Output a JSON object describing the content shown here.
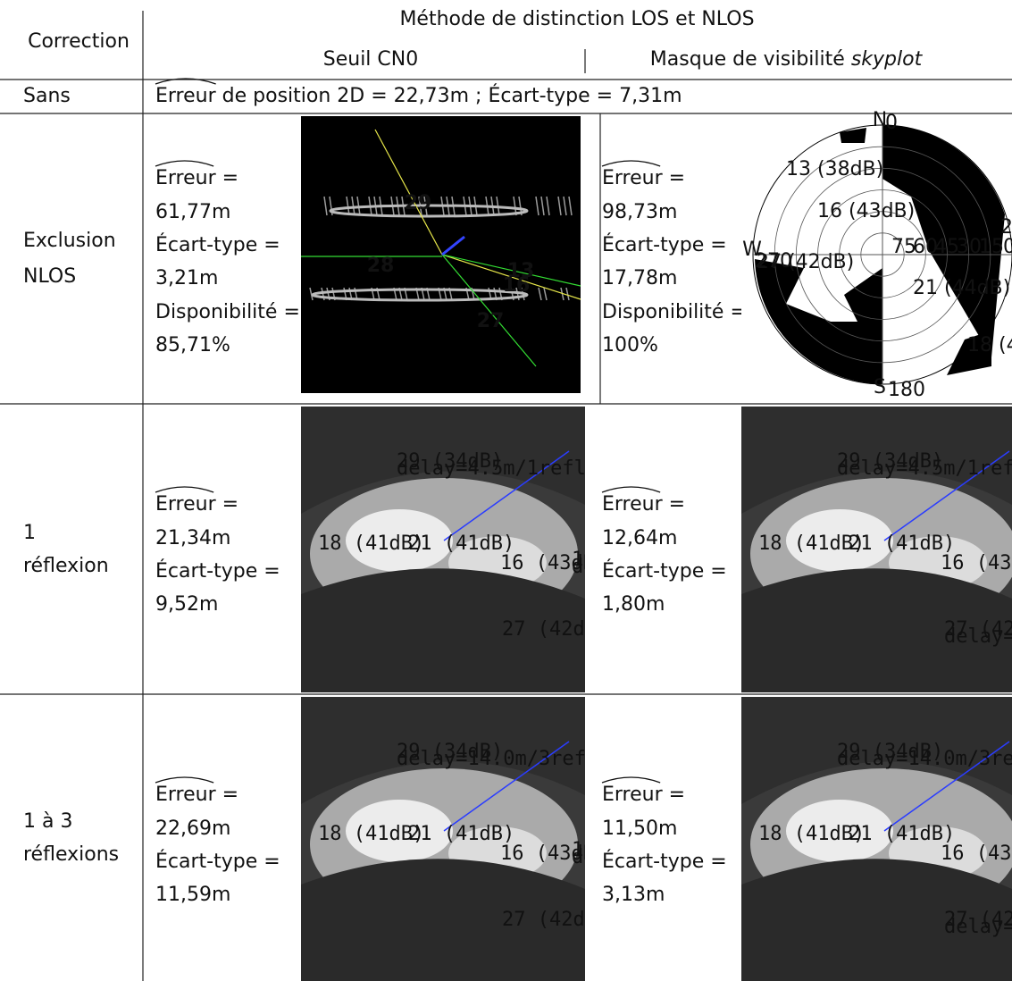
{
  "header": {
    "correction": "Correction",
    "method": "Méthode de distinction LOS et NLOS",
    "cn0": "Seuil CN0",
    "skyplot_prefix": "Masque de visibilité",
    "skyplot_italic": "skyplot"
  },
  "rows": [
    {
      "label": [
        "Sans"
      ],
      "summary": [
        "Erreur",
        "de position 2D = 22,73m ; Écart-type = 7,31m"
      ]
    },
    {
      "label": [
        "Exclusion",
        "NLOS"
      ],
      "cn0": {
        "lines": [
          "Erreur =",
          "61,77m",
          "Écart-type =",
          "3,21m",
          "Disponibilité =",
          "85,71%"
        ],
        "image": {
          "labels": [
            "29",
            "28",
            "13",
            "16",
            "27"
          ]
        }
      },
      "skyplot": {
        "lines": [
          "Erreur =",
          "98,73m",
          "Écart-type =",
          "17,78m",
          "Disponibilité =",
          "100%"
        ],
        "image": {
          "compass": [
            "N",
            "S",
            "W"
          ],
          "degrees": [
            "0",
            "180",
            "270"
          ],
          "rings": [
            "75",
            "60",
            "45",
            "30",
            "15",
            "0"
          ],
          "labels": [
            "13 (38dB)",
            "16 (43dB)",
            "29 (",
            "27 (42dB)",
            "21 (44dB)",
            "18 (41dB"
          ]
        }
      }
    },
    {
      "label": [
        "1",
        "réflexion"
      ],
      "cn0": {
        "lines": [
          "Erreur =",
          "21,34m",
          "Écart-type =",
          "9,52m"
        ],
        "image": {
          "labels": [
            "29 (34dB)",
            "delay=4.5m/1refl.",
            "18 (41dB)",
            "21 (41dB)",
            "16 (43dB)",
            "13",
            "delay",
            "27 (42dB)"
          ]
        }
      },
      "skyplot": {
        "lines": [
          "Erreur =",
          "12,64m",
          "Écart-type =",
          "1,80m"
        ],
        "image": {
          "labels": [
            "29 (34dB)",
            "delay=4.5m/1refl.",
            "18 (41dB)",
            "21 (41dB)",
            "16 (43dB)",
            "27 (42dB)",
            "delay=8.5m/1re"
          ]
        }
      }
    },
    {
      "label": [
        "1 à 3",
        "réflexions"
      ],
      "cn0": {
        "lines": [
          "Erreur =",
          "22,69m",
          "Écart-type =",
          "11,59m"
        ],
        "image": {
          "labels": [
            "29 (34dB)",
            "delay=14.0m/3refl.",
            "18 (41dB)",
            "21 (41dB)",
            "16 (43dB)",
            "13",
            "de",
            "27 (42dB)"
          ]
        }
      },
      "skyplot": {
        "lines": [
          "Erreur =",
          "11,50m",
          "Écart-type =",
          "3,13m"
        ],
        "image": {
          "labels": [
            "29 (34dB)",
            "delay=14.0m/3refl.",
            "18 (41dB)",
            "21 (41dB)",
            "16 (43dB)",
            "27 (42dB)",
            "delay=8.5m/1re"
          ]
        }
      }
    }
  ]
}
